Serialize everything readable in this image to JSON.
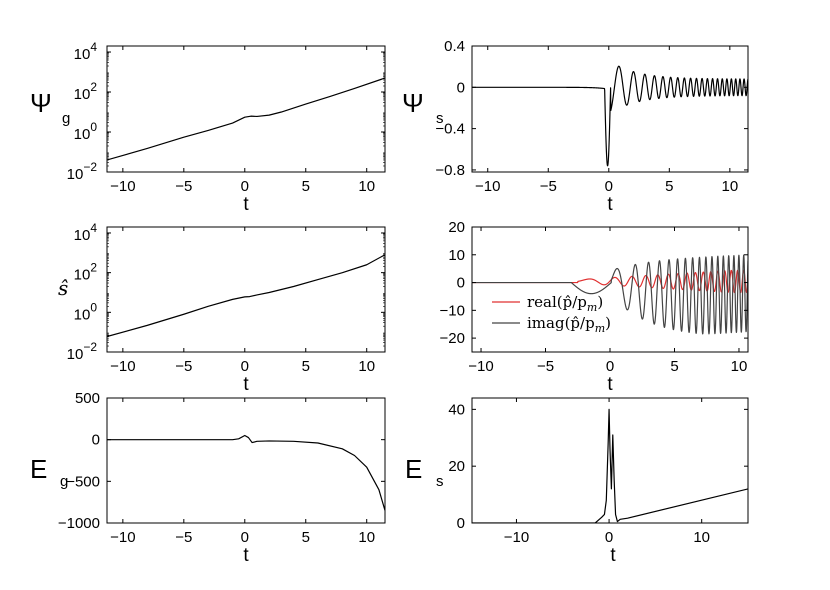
{
  "chart_data": [
    {
      "id": "psi_g",
      "type": "line",
      "ylabel_main": "Ψ",
      "ylabel_sub": "g",
      "xlabel": "t",
      "yscale": "log",
      "xlim": [
        -11.3,
        11.5
      ],
      "ylim": [
        0.01,
        20000
      ],
      "xticks": [
        -10,
        -5,
        0,
        5,
        10
      ],
      "xtick_labels": [
        "−10",
        "−5",
        "0",
        "5",
        "10"
      ],
      "yticks": [
        0.01,
        1,
        100,
        10000
      ],
      "ytick_base": [
        "10",
        "10",
        "10",
        "10"
      ],
      "ytick_exp": [
        "−2",
        "0",
        "2",
        "4"
      ],
      "series": [
        {
          "name": "Psi_g",
          "color": "#000000",
          "x": [
            -11.3,
            -8,
            -5,
            -3,
            -1,
            0,
            0.5,
            1,
            2,
            3,
            5,
            7,
            9,
            11.5
          ],
          "y": [
            0.04,
            0.15,
            0.55,
            1.2,
            2.8,
            5.5,
            6.2,
            6.0,
            7.0,
            10,
            25,
            60,
            150,
            500
          ]
        }
      ]
    },
    {
      "id": "psi_s",
      "type": "line",
      "ylabel_main": "Ψ",
      "ylabel_sub": "s",
      "xlabel": "t",
      "yscale": "linear",
      "xlim": [
        -11.3,
        11.5
      ],
      "ylim": [
        -0.82,
        0.4
      ],
      "xticks": [
        -10,
        -5,
        0,
        5,
        10
      ],
      "xtick_labels": [
        "−10",
        "−5",
        "0",
        "5",
        "10"
      ],
      "yticks": [
        -0.8,
        -0.4,
        0,
        0.4
      ],
      "ytick_labels": [
        "−0.8",
        "−0.4",
        "0",
        "0.4"
      ],
      "series": [
        {
          "name": "Psi_s",
          "color": "#000000",
          "model": "damped oscillation: small dip then sharp negative spike near t=0 to about -0.77, followed by oscillations of amplitude ~0.25 decaying to ~0.08 with increasing frequency",
          "min_value": -0.77,
          "first_peak": 0.2,
          "second_peak": 0.25,
          "tail_amplitude": 0.08
        }
      ]
    },
    {
      "id": "s_hat",
      "type": "line",
      "ylabel_math": "ŝ",
      "xlabel": "t",
      "yscale": "log",
      "xlim": [
        -11.3,
        11.5
      ],
      "ylim": [
        0.01,
        20000
      ],
      "xticks": [
        -10,
        -5,
        0,
        5,
        10
      ],
      "xtick_labels": [
        "−10",
        "−5",
        "0",
        "5",
        "10"
      ],
      "yticks": [
        0.01,
        1,
        100,
        10000
      ],
      "ytick_base": [
        "10",
        "10",
        "10",
        "10"
      ],
      "ytick_exp": [
        "−2",
        "0",
        "2",
        "4"
      ],
      "series": [
        {
          "name": "s_hat",
          "color": "#000000",
          "x": [
            -11.3,
            -8,
            -5,
            -3,
            -1,
            0,
            0.4,
            1,
            2,
            4,
            6,
            8,
            10,
            11.5
          ],
          "y": [
            0.06,
            0.22,
            0.8,
            2,
            4.5,
            6,
            6.2,
            7.5,
            10,
            20,
            45,
            100,
            250,
            800
          ]
        }
      ]
    },
    {
      "id": "p_hat",
      "type": "line",
      "xlabel": "t",
      "yscale": "linear",
      "xlim": [
        -10.7,
        10.7
      ],
      "ylim": [
        -25,
        20
      ],
      "xticks": [
        -10,
        -5,
        0,
        5,
        10
      ],
      "xtick_labels": [
        "−10",
        "−5",
        "0",
        "5",
        "10"
      ],
      "yticks": [
        -20,
        -10,
        0,
        10,
        20
      ],
      "ytick_labels": [
        "−20",
        "−10",
        "0",
        "10",
        "20"
      ],
      "legend": {
        "location": "bottom-left",
        "entries": [
          {
            "label": "real(p̂/p",
            "sub": "m",
            "tail": ")",
            "color": "#e03030"
          },
          {
            "label": "imag(p̂/p",
            "sub": "m",
            "tail": ")",
            "color": "#444444"
          }
        ]
      },
      "series": [
        {
          "name": "real",
          "color": "#e03030",
          "model": "near zero until t≈-2, then oscillation growing from ~1 to amplitude ~5 by t=10 with increasing frequency"
        },
        {
          "name": "imag",
          "color": "#444444",
          "model": "near zero, dip to about -4 at t≈-1, peak ~6 at t≈0.5, then fast oscillation with envelope growing to ~ +9 / -22 around t≈7 and slightly shrinking"
        }
      ]
    },
    {
      "id": "e_g",
      "type": "line",
      "ylabel_main": "E",
      "ylabel_sub": "g",
      "xlabel": "t",
      "yscale": "linear",
      "xlim": [
        -11.3,
        11.5
      ],
      "ylim": [
        -1000,
        500
      ],
      "xticks": [
        -10,
        -5,
        0,
        5,
        10
      ],
      "xtick_labels": [
        "−10",
        "−5",
        "0",
        "5",
        "10"
      ],
      "yticks": [
        -1000,
        -500,
        0,
        500
      ],
      "ytick_labels": [
        "−1000",
        "−500",
        "0",
        "500"
      ],
      "series": [
        {
          "name": "E_g",
          "color": "#000000",
          "x": [
            -11.3,
            -5,
            -1,
            -0.5,
            0,
            0.3,
            0.6,
            1.0,
            2,
            4,
            6,
            8,
            9,
            10,
            11,
            11.5
          ],
          "y": [
            0,
            0,
            0,
            10,
            50,
            25,
            -35,
            -20,
            -15,
            -20,
            -40,
            -110,
            -190,
            -330,
            -600,
            -850
          ]
        }
      ]
    },
    {
      "id": "e_s",
      "type": "line",
      "ylabel_main": "E",
      "ylabel_sub": "s",
      "xlabel": "t",
      "yscale": "linear",
      "xlim": [
        -14.8,
        15
      ],
      "ylim": [
        0,
        44
      ],
      "xticks": [
        -10,
        0,
        10
      ],
      "xtick_labels": [
        "−10",
        "0",
        "10"
      ],
      "yticks": [
        0,
        20,
        40
      ],
      "ytick_labels": [
        "0",
        "20",
        "40"
      ],
      "series": [
        {
          "name": "E_s",
          "color": "#000000",
          "x": [
            -14.8,
            -1.5,
            -0.8,
            -0.5,
            -0.3,
            -0.1,
            0.0,
            0.1,
            0.25,
            0.4,
            0.55,
            0.7,
            0.9,
            1.2,
            2,
            15
          ],
          "y": [
            0,
            0,
            2,
            3,
            8,
            28,
            40,
            26,
            12,
            31,
            15,
            3,
            0.5,
            1.3,
            1.7,
            12
          ]
        }
      ]
    }
  ]
}
